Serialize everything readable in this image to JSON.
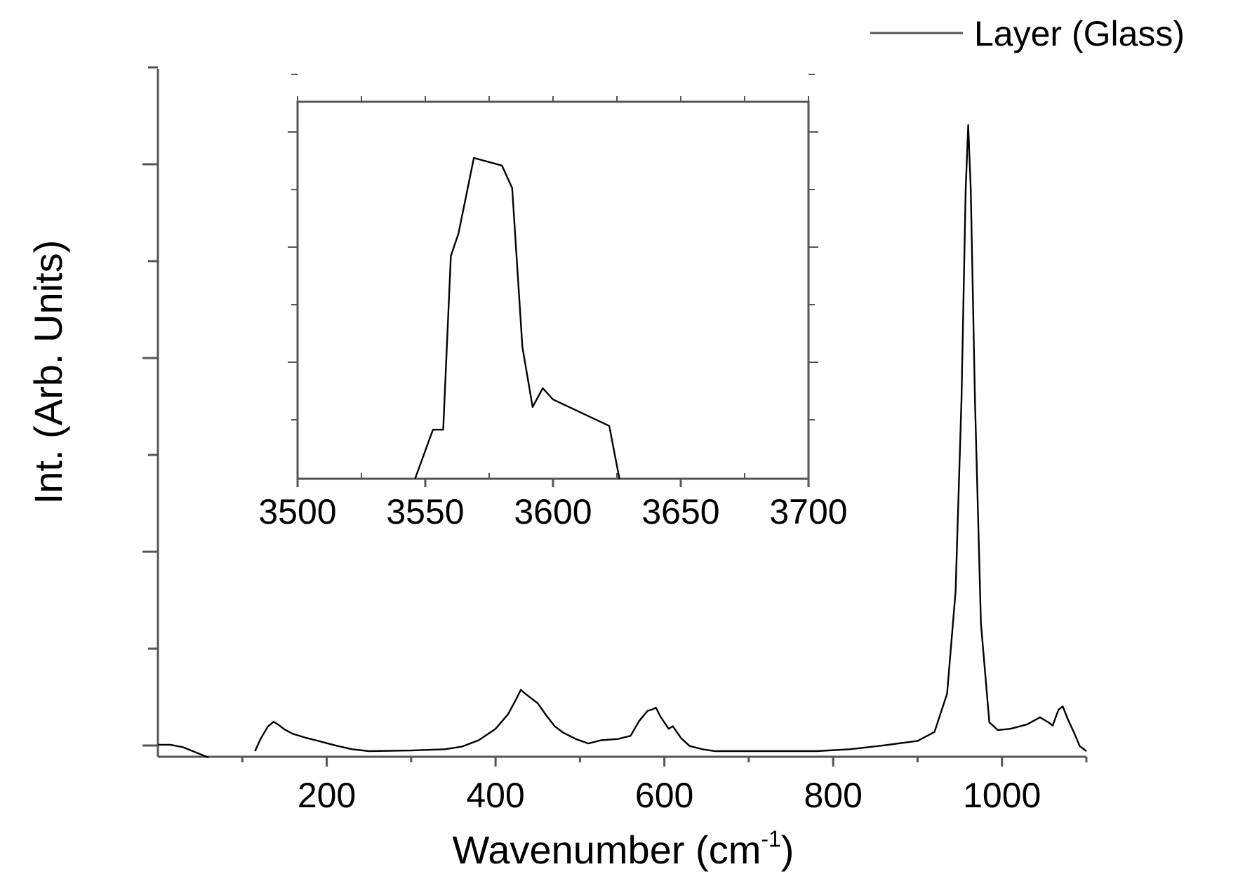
{
  "chart_data": [
    {
      "type": "line",
      "xlabel": "Wavenumber (cm",
      "xlabel_sup": "-1",
      "xlabel_close": ")",
      "ylabel": "Int. (Arb. Units)",
      "xlim": [
        0,
        1100
      ],
      "ylim": [
        0,
        100
      ],
      "x_ticks": [
        200,
        400,
        600,
        800,
        1000
      ],
      "x_minor_ticks": [
        100,
        300,
        500,
        700,
        900,
        1100
      ],
      "y_ticks_shown_labels": false,
      "legend": {
        "position": "top-right",
        "entries": [
          "Layer (Glass)"
        ]
      },
      "series": [
        {
          "name": "Layer (Glass)",
          "color": "#000000",
          "segments": [
            [
              [
                0,
                1.0
              ],
              [
                15,
                1.0
              ],
              [
                30,
                0.6
              ],
              [
                45,
                -0.2
              ],
              [
                60,
                -1.0
              ]
            ],
            [
              [
                115,
                0
              ],
              [
                122,
                2.0
              ],
              [
                130,
                3.8
              ],
              [
                137,
                4.6
              ],
              [
                142,
                4.2
              ],
              [
                150,
                3.4
              ],
              [
                160,
                2.7
              ],
              [
                175,
                2.1
              ],
              [
                190,
                1.6
              ],
              [
                210,
                0.9
              ],
              [
                230,
                0.3
              ],
              [
                250,
                0.0
              ],
              [
                300,
                0.1
              ],
              [
                340,
                0.3
              ],
              [
                360,
                0.7
              ],
              [
                380,
                1.7
              ],
              [
                400,
                3.5
              ],
              [
                415,
                5.8
              ],
              [
                425,
                8.3
              ],
              [
                430,
                9.6
              ],
              [
                435,
                9.0
              ],
              [
                440,
                8.5
              ],
              [
                450,
                7.5
              ],
              [
                460,
                5.6
              ],
              [
                470,
                3.9
              ],
              [
                480,
                2.9
              ],
              [
                495,
                1.9
              ],
              [
                510,
                1.2
              ],
              [
                525,
                1.7
              ],
              [
                545,
                1.9
              ],
              [
                560,
                2.4
              ],
              [
                570,
                4.7
              ],
              [
                580,
                6.3
              ],
              [
                585,
                6.5
              ],
              [
                590,
                6.8
              ],
              [
                595,
                5.5
              ],
              [
                600,
                4.5
              ],
              [
                605,
                3.5
              ],
              [
                610,
                3.9
              ],
              [
                620,
                2.0
              ],
              [
                630,
                0.8
              ],
              [
                645,
                0.3
              ],
              [
                660,
                0.0
              ],
              [
                700,
                0.0
              ],
              [
                780,
                0.0
              ],
              [
                820,
                0.3
              ],
              [
                860,
                0.9
              ],
              [
                900,
                1.6
              ],
              [
                920,
                3.0
              ],
              [
                935,
                9.0
              ],
              [
                945,
                25.0
              ],
              [
                952,
                55.0
              ],
              [
                957,
                88.0
              ],
              [
                960,
                98.0
              ],
              [
                963,
                88.0
              ],
              [
                968,
                55.0
              ],
              [
                975,
                20.0
              ],
              [
                985,
                4.5
              ],
              [
                995,
                3.3
              ],
              [
                1010,
                3.5
              ],
              [
                1030,
                4.2
              ],
              [
                1045,
                5.3
              ],
              [
                1055,
                4.5
              ],
              [
                1060,
                4.0
              ],
              [
                1067,
                6.5
              ],
              [
                1072,
                7.0
              ],
              [
                1078,
                5.0
              ],
              [
                1085,
                3.0
              ],
              [
                1092,
                0.8
              ],
              [
                1100,
                0.0
              ]
            ]
          ]
        }
      ]
    },
    {
      "type": "line",
      "role": "inset",
      "xlim": [
        3500,
        3700
      ],
      "ylim": [
        0,
        100
      ],
      "x_ticks": [
        3500,
        3550,
        3600,
        3650,
        3700
      ],
      "series": [
        {
          "color": "#000000",
          "points": [
            [
              3546,
              0
            ],
            [
              3553,
              13
            ],
            [
              3557,
              13
            ],
            [
              3560,
              59
            ],
            [
              3563,
              65
            ],
            [
              3569,
              85
            ],
            [
              3580,
              83
            ],
            [
              3584,
              77
            ],
            [
              3588,
              35
            ],
            [
              3592,
              19
            ],
            [
              3596,
              24
            ],
            [
              3600,
              21
            ],
            [
              3622,
              14
            ],
            [
              3626,
              0
            ]
          ]
        }
      ]
    }
  ]
}
